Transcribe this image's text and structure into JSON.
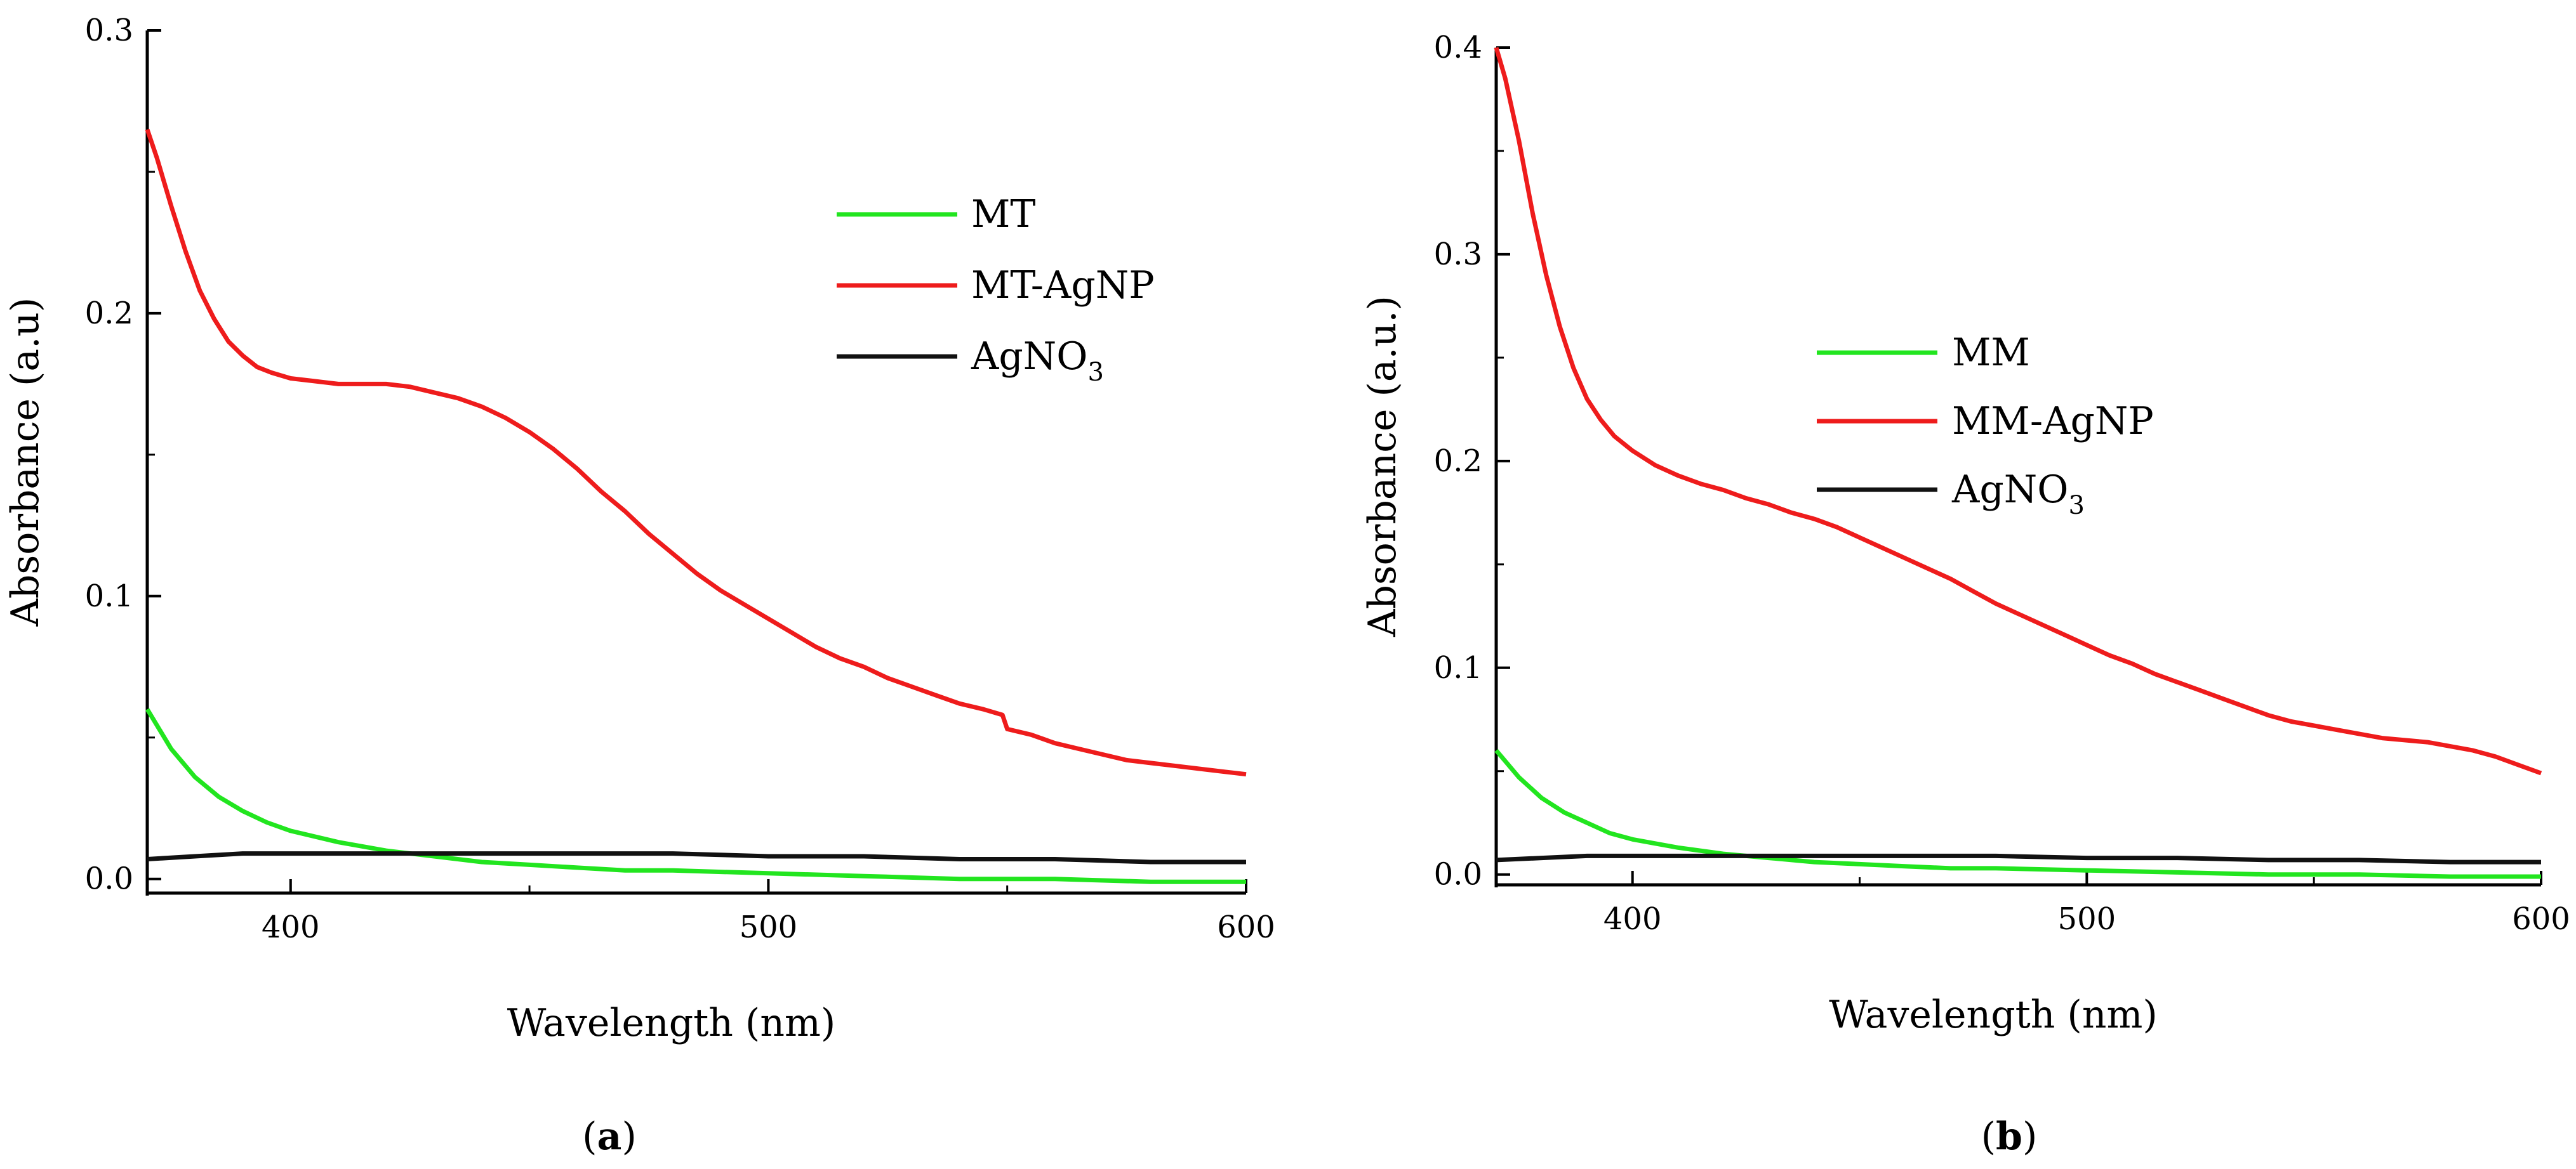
{
  "chart_data": [
    {
      "type": "line",
      "panel": "a",
      "panel_letter": "a",
      "caption_open": "(",
      "caption_close": ")",
      "xlabel": "Wavelength (nm)",
      "ylabel": "Absorbance (a.u)",
      "xlim": [
        370,
        600
      ],
      "ylim": [
        -0.005,
        0.3
      ],
      "xticks": [
        400,
        500,
        600
      ],
      "xtick_labels": [
        "400",
        "500",
        "600"
      ],
      "yticks": [
        0.0,
        0.1,
        0.2,
        0.3
      ],
      "ytick_labels": [
        "0.0",
        "0.1",
        "0.2",
        "0.3"
      ],
      "legend_position": "top-right",
      "series": [
        {
          "name": "MT",
          "label_main": "MT",
          "label_sub": "",
          "color": "#22e51f",
          "x": [
            370,
            375,
            380,
            385,
            390,
            395,
            400,
            410,
            420,
            430,
            440,
            450,
            460,
            470,
            480,
            500,
            520,
            540,
            560,
            580,
            600
          ],
          "y": [
            0.06,
            0.046,
            0.036,
            0.029,
            0.024,
            0.02,
            0.017,
            0.013,
            0.01,
            0.008,
            0.006,
            0.005,
            0.004,
            0.003,
            0.003,
            0.002,
            0.001,
            0.0,
            0.0,
            -0.001,
            -0.001
          ]
        },
        {
          "name": "MT-AgNP",
          "label_main": "MT-AgNP",
          "label_sub": "",
          "color": "#ee1c1c",
          "x": [
            370,
            372,
            375,
            378,
            381,
            384,
            387,
            390,
            393,
            396,
            400,
            405,
            410,
            415,
            420,
            425,
            430,
            435,
            440,
            445,
            450,
            455,
            460,
            465,
            470,
            475,
            480,
            485,
            490,
            495,
            500,
            505,
            510,
            515,
            520,
            525,
            530,
            535,
            540,
            545,
            549,
            550,
            555,
            560,
            565,
            570,
            575,
            580,
            585,
            590,
            595,
            600
          ],
          "y": [
            0.265,
            0.255,
            0.238,
            0.222,
            0.208,
            0.198,
            0.19,
            0.185,
            0.181,
            0.179,
            0.177,
            0.176,
            0.175,
            0.175,
            0.175,
            0.174,
            0.172,
            0.17,
            0.167,
            0.163,
            0.158,
            0.152,
            0.145,
            0.137,
            0.13,
            0.122,
            0.115,
            0.108,
            0.102,
            0.097,
            0.092,
            0.087,
            0.082,
            0.078,
            0.075,
            0.071,
            0.068,
            0.065,
            0.062,
            0.06,
            0.058,
            0.053,
            0.051,
            0.048,
            0.046,
            0.044,
            0.042,
            0.041,
            0.04,
            0.039,
            0.038,
            0.037
          ]
        },
        {
          "name": "AgNO3",
          "label_main": "AgNO",
          "label_sub": "3",
          "color": "#111111",
          "x": [
            370,
            380,
            390,
            400,
            410,
            420,
            440,
            460,
            480,
            500,
            520,
            540,
            560,
            580,
            600
          ],
          "y": [
            0.007,
            0.008,
            0.009,
            0.009,
            0.009,
            0.009,
            0.009,
            0.009,
            0.009,
            0.008,
            0.008,
            0.007,
            0.007,
            0.006,
            0.006
          ]
        }
      ]
    },
    {
      "type": "line",
      "panel": "b",
      "panel_letter": "b",
      "caption_open": "(",
      "caption_close": ")",
      "xlabel": "Wavelength (nm)",
      "ylabel": "Absorbance (a.u.)",
      "xlim": [
        370,
        600
      ],
      "ylim": [
        -0.005,
        0.4
      ],
      "xticks": [
        400,
        500,
        600
      ],
      "xtick_labels": [
        "400",
        "500",
        "600"
      ],
      "yticks": [
        0.0,
        0.1,
        0.2,
        0.3,
        0.4
      ],
      "ytick_labels": [
        "0.0",
        "0.1",
        "0.2",
        "0.3",
        "0.4"
      ],
      "legend_position": "center-right",
      "series": [
        {
          "name": "MM",
          "label_main": "MM",
          "label_sub": "",
          "color": "#22e51f",
          "x": [
            370,
            375,
            380,
            385,
            390,
            395,
            400,
            410,
            420,
            430,
            440,
            450,
            460,
            470,
            480,
            500,
            520,
            540,
            560,
            580,
            600
          ],
          "y": [
            0.06,
            0.047,
            0.037,
            0.03,
            0.025,
            0.02,
            0.017,
            0.013,
            0.01,
            0.008,
            0.006,
            0.005,
            0.004,
            0.003,
            0.003,
            0.002,
            0.001,
            0.0,
            0.0,
            -0.001,
            -0.001
          ]
        },
        {
          "name": "MM-AgNP",
          "label_main": "MM-AgNP",
          "label_sub": "",
          "color": "#ee1c1c",
          "x": [
            370,
            372,
            375,
            378,
            381,
            384,
            387,
            390,
            393,
            396,
            400,
            405,
            410,
            415,
            420,
            425,
            430,
            435,
            440,
            445,
            450,
            455,
            460,
            465,
            470,
            475,
            480,
            485,
            490,
            495,
            500,
            505,
            510,
            515,
            520,
            525,
            530,
            535,
            540,
            545,
            550,
            555,
            560,
            565,
            570,
            575,
            580,
            585,
            590,
            595,
            600
          ],
          "y": [
            0.4,
            0.385,
            0.355,
            0.32,
            0.29,
            0.265,
            0.245,
            0.23,
            0.22,
            0.212,
            0.205,
            0.198,
            0.193,
            0.189,
            0.186,
            0.182,
            0.179,
            0.175,
            0.172,
            0.168,
            0.163,
            0.158,
            0.153,
            0.148,
            0.143,
            0.137,
            0.131,
            0.126,
            0.121,
            0.116,
            0.111,
            0.106,
            0.102,
            0.097,
            0.093,
            0.089,
            0.085,
            0.081,
            0.077,
            0.074,
            0.072,
            0.07,
            0.068,
            0.066,
            0.065,
            0.064,
            0.062,
            0.06,
            0.057,
            0.053,
            0.049
          ]
        },
        {
          "name": "AgNO3",
          "label_main": "AgNO",
          "label_sub": "3",
          "color": "#111111",
          "x": [
            370,
            380,
            390,
            400,
            410,
            420,
            440,
            460,
            480,
            500,
            520,
            540,
            560,
            580,
            600
          ],
          "y": [
            0.007,
            0.008,
            0.009,
            0.009,
            0.009,
            0.009,
            0.009,
            0.009,
            0.009,
            0.008,
            0.008,
            0.007,
            0.007,
            0.006,
            0.006
          ]
        }
      ]
    }
  ]
}
